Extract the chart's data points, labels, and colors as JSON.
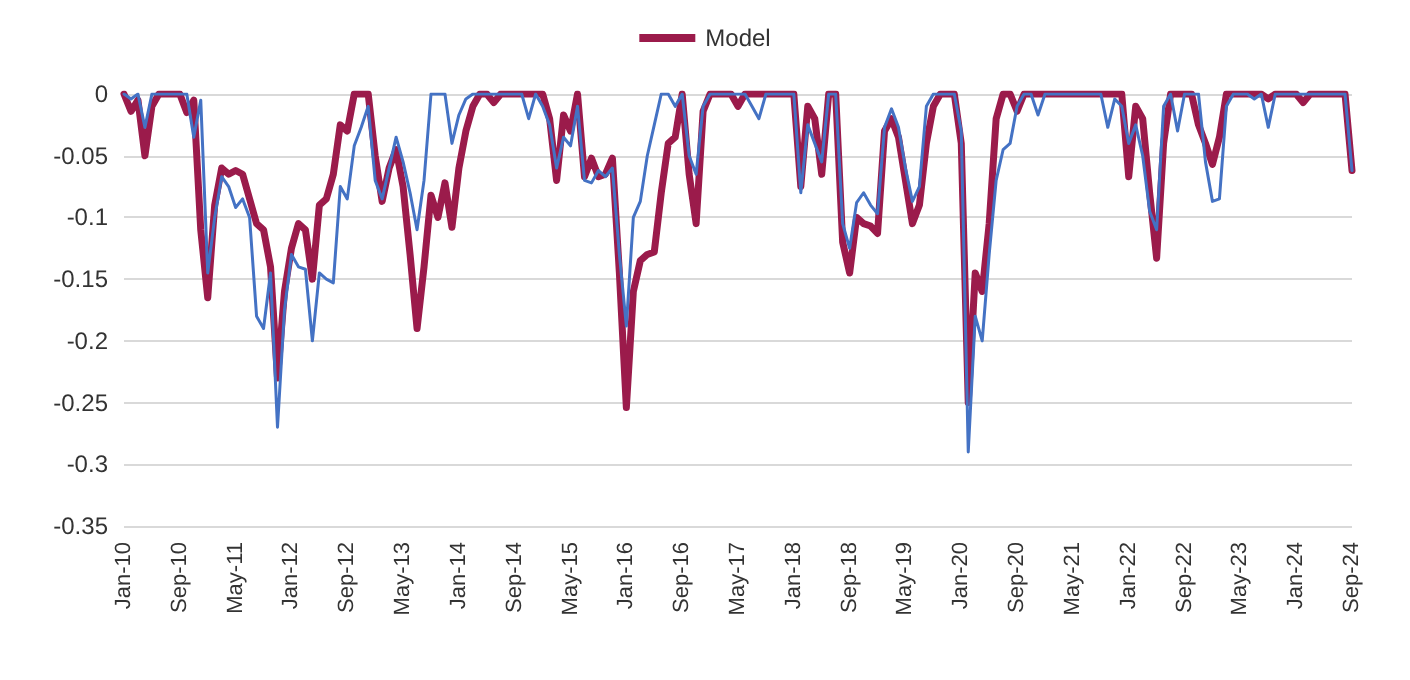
{
  "chart_data": {
    "type": "line",
    "categories": [
      "Jan-10",
      null,
      null,
      null,
      null,
      null,
      null,
      null,
      "Sep-10",
      null,
      null,
      null,
      null,
      null,
      null,
      null,
      "May-11",
      null,
      null,
      null,
      null,
      null,
      null,
      null,
      "Jan-12",
      null,
      null,
      null,
      null,
      null,
      null,
      null,
      "Sep-12",
      null,
      null,
      null,
      null,
      null,
      null,
      null,
      "May-13",
      null,
      null,
      null,
      null,
      null,
      null,
      null,
      "Jan-14",
      null,
      null,
      null,
      null,
      null,
      null,
      null,
      "Sep-14",
      null,
      null,
      null,
      null,
      null,
      null,
      null,
      "May-15",
      null,
      null,
      null,
      null,
      null,
      null,
      null,
      "Jan-16",
      null,
      null,
      null,
      null,
      null,
      null,
      null,
      "Sep-16",
      null,
      null,
      null,
      null,
      null,
      null,
      null,
      "May-17",
      null,
      null,
      null,
      null,
      null,
      null,
      null,
      "Jan-18",
      null,
      null,
      null,
      null,
      null,
      null,
      null,
      "Sep-18",
      null,
      null,
      null,
      null,
      null,
      null,
      null,
      "May-19",
      null,
      null,
      null,
      null,
      null,
      null,
      null,
      "Jan-20",
      null,
      null,
      null,
      null,
      null,
      null,
      null,
      "Sep-20",
      null,
      null,
      null,
      null,
      null,
      null,
      null,
      "May-21",
      null,
      null,
      null,
      null,
      null,
      null,
      null,
      "Jan-22",
      null,
      null,
      null,
      null,
      null,
      null,
      null,
      "Sep-22",
      null,
      null,
      null,
      null,
      null,
      null,
      null,
      "May-23",
      null,
      null,
      null,
      null,
      null,
      null,
      null,
      "Jan-24",
      null,
      null,
      null,
      null,
      null,
      null,
      null,
      "Sep-24"
    ],
    "series": [
      {
        "name": "Model",
        "color": "#9b1b4b",
        "values": [
          0,
          -0.014,
          -0.005,
          -0.05,
          -0.01,
          0,
          0,
          0,
          0,
          -0.015,
          -0.005,
          -0.11,
          -0.165,
          -0.09,
          -0.06,
          -0.065,
          -0.062,
          -0.065,
          -0.085,
          -0.105,
          -0.11,
          -0.14,
          -0.23,
          -0.16,
          -0.125,
          -0.105,
          -0.11,
          -0.15,
          -0.09,
          -0.085,
          -0.065,
          -0.025,
          -0.03,
          0,
          0,
          0,
          -0.05,
          -0.087,
          -0.06,
          -0.045,
          -0.075,
          -0.13,
          -0.19,
          -0.14,
          -0.082,
          -0.1,
          -0.072,
          -0.108,
          -0.06,
          -0.03,
          -0.01,
          0,
          0,
          -0.007,
          0,
          0,
          0,
          0,
          0,
          0,
          0,
          -0.02,
          -0.07,
          -0.017,
          -0.03,
          0,
          -0.067,
          -0.052,
          -0.067,
          -0.065,
          -0.052,
          -0.145,
          -0.254,
          -0.16,
          -0.135,
          -0.13,
          -0.128,
          -0.08,
          -0.04,
          -0.035,
          0,
          -0.065,
          -0.105,
          -0.014,
          0,
          0,
          0,
          0,
          -0.01,
          0,
          0,
          0,
          0,
          0,
          0,
          0,
          0,
          -0.075,
          -0.01,
          -0.02,
          -0.065,
          0,
          0,
          -0.12,
          -0.145,
          -0.1,
          -0.105,
          -0.107,
          -0.113,
          -0.03,
          -0.02,
          -0.035,
          -0.07,
          -0.105,
          -0.09,
          -0.04,
          -0.01,
          0,
          0,
          0,
          -0.04,
          -0.25,
          -0.145,
          -0.16,
          -0.105,
          -0.02,
          0,
          0,
          -0.014,
          0,
          0,
          0,
          0,
          0,
          0,
          0,
          0,
          0,
          0,
          0,
          0,
          0,
          0,
          0,
          -0.067,
          -0.01,
          -0.02,
          -0.08,
          -0.133,
          -0.04,
          0,
          0,
          0,
          0,
          -0.025,
          -0.04,
          -0.057,
          -0.035,
          0,
          0,
          0,
          0,
          0,
          0,
          -0.004,
          0,
          0,
          0,
          0,
          -0.007,
          0,
          0,
          0,
          0,
          0,
          0,
          -0.062
        ]
      },
      {
        "color": "#4472c4",
        "values": [
          0,
          -0.004,
          0,
          -0.027,
          0,
          0,
          0,
          0,
          0,
          0,
          -0.035,
          -0.005,
          -0.145,
          -0.1,
          -0.067,
          -0.075,
          -0.092,
          -0.085,
          -0.1,
          -0.18,
          -0.19,
          -0.145,
          -0.27,
          -0.175,
          -0.13,
          -0.14,
          -0.142,
          -0.2,
          -0.145,
          -0.15,
          -0.153,
          -0.075,
          -0.085,
          -0.042,
          -0.027,
          -0.01,
          -0.07,
          -0.085,
          -0.06,
          -0.035,
          -0.055,
          -0.08,
          -0.11,
          -0.07,
          0,
          0,
          0,
          -0.04,
          -0.017,
          -0.004,
          0,
          0,
          0,
          0,
          0,
          0,
          0,
          0,
          -0.02,
          0,
          -0.01,
          -0.025,
          -0.06,
          -0.035,
          -0.042,
          -0.01,
          -0.07,
          -0.072,
          -0.062,
          -0.067,
          -0.06,
          -0.13,
          -0.188,
          -0.1,
          -0.087,
          -0.05,
          -0.025,
          0,
          0,
          -0.01,
          0,
          -0.05,
          -0.065,
          -0.01,
          0,
          0,
          0,
          0,
          0,
          0,
          -0.01,
          -0.02,
          0,
          0,
          0,
          0,
          0,
          -0.08,
          -0.025,
          -0.04,
          -0.055,
          0,
          0,
          -0.105,
          -0.125,
          -0.088,
          -0.08,
          -0.09,
          -0.097,
          -0.027,
          -0.012,
          -0.027,
          -0.06,
          -0.087,
          -0.075,
          -0.01,
          0,
          0,
          0,
          0,
          -0.03,
          -0.29,
          -0.18,
          -0.2,
          -0.13,
          -0.07,
          -0.045,
          -0.04,
          -0.01,
          0,
          0,
          -0.017,
          0,
          0,
          0,
          0,
          0,
          0,
          0,
          0,
          0,
          -0.027,
          -0.004,
          -0.01,
          -0.04,
          -0.025,
          -0.05,
          -0.095,
          -0.11,
          -0.01,
          0,
          -0.03,
          0,
          0,
          0,
          -0.055,
          -0.087,
          -0.085,
          -0.01,
          0,
          0,
          0,
          -0.004,
          0,
          -0.027,
          0,
          0,
          0,
          0,
          0,
          0,
          0,
          0,
          0,
          0,
          0,
          -0.062
        ]
      }
    ],
    "ylim": [
      -0.35,
      0
    ],
    "yticks": [
      -0.35,
      -0.3,
      -0.25,
      -0.2,
      -0.15,
      -0.1,
      -0.05,
      0
    ],
    "grid": "y",
    "legend": "top",
    "marker": "none",
    "line_style": "solid"
  }
}
